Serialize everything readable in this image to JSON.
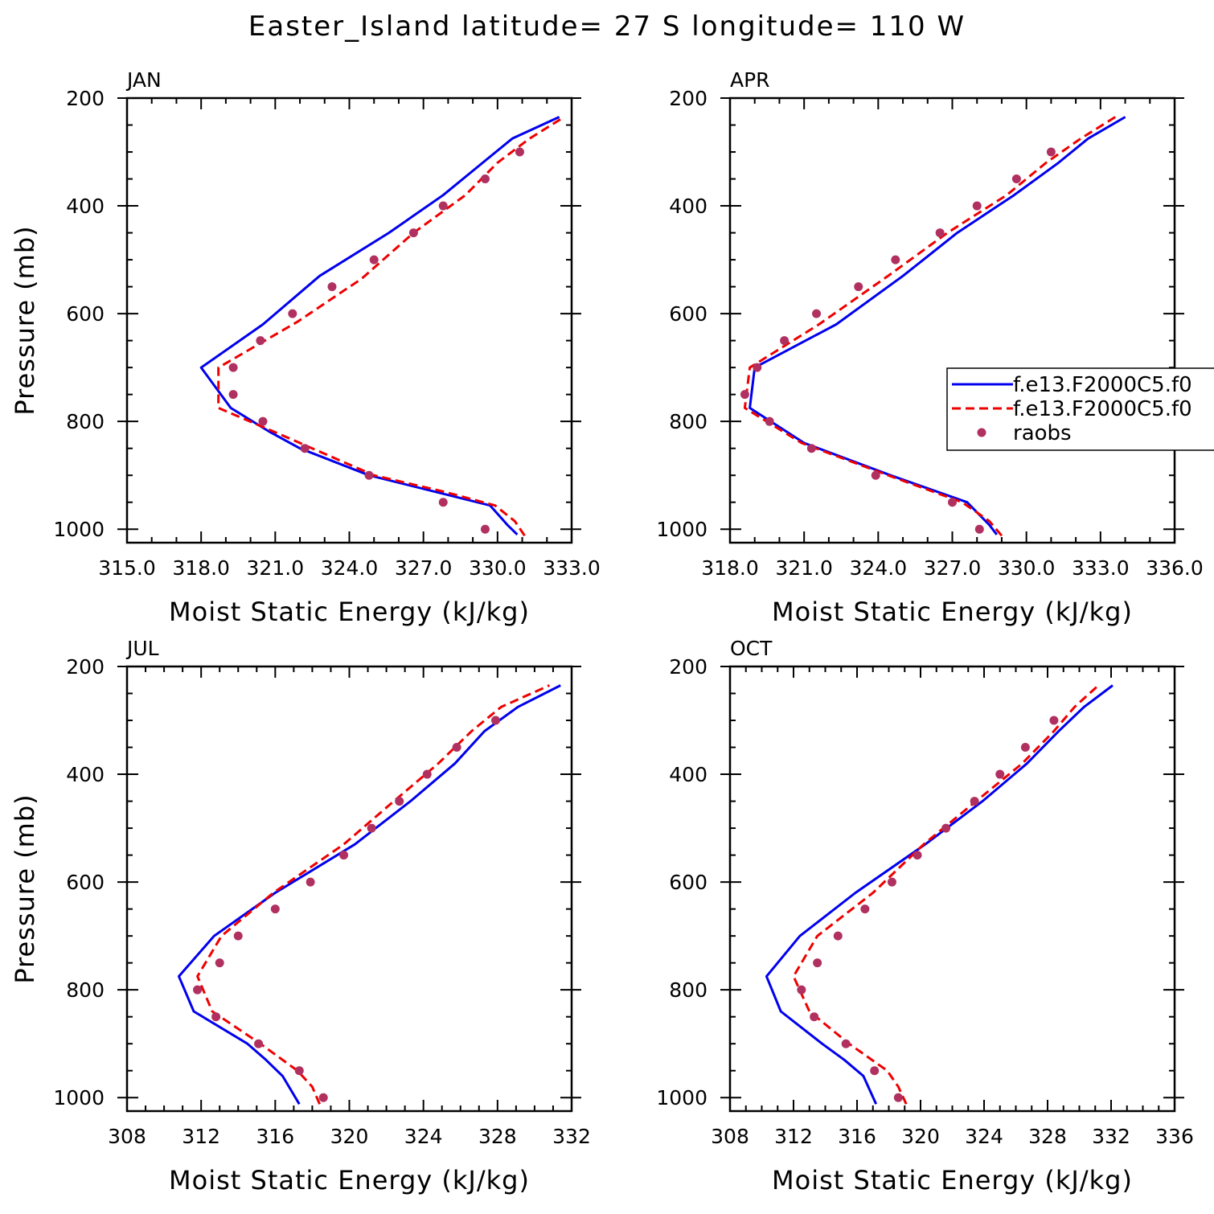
{
  "title": "Easter_Island  latitude= 27 S longitude= 110 W",
  "colors": {
    "model_a": "#0000ee",
    "model_b": "#ee0000",
    "raobs": "#b03060"
  },
  "legend": {
    "entries": [
      {
        "label": "f.e13.F2000C5.f0",
        "style": "solid",
        "color": "#0000ee"
      },
      {
        "label": "f.e13.F2000C5.f0",
        "style": "dashed",
        "color": "#ee0000"
      },
      {
        "label": "raobs",
        "style": "dot",
        "color": "#b03060"
      }
    ],
    "placement": "right of APR panel, partially clipped"
  },
  "chart_data": [
    {
      "type": "line",
      "panel_label": "JAN",
      "xlabel": "Moist Static Energy (kJ/kg)",
      "ylabel": "Pressure (mb)",
      "xlim": [
        315,
        333
      ],
      "ylim": [
        1025,
        200
      ],
      "inverted_y": true,
      "xticks": [
        315,
        318,
        321,
        324,
        327,
        330,
        333
      ],
      "xtick_labels": [
        "315.0",
        "318.0",
        "321.0",
        "324.0",
        "327.0",
        "330.0",
        "333.0"
      ],
      "yticks": [
        200,
        400,
        600,
        800,
        1000
      ],
      "ytick_labels": [
        "200",
        "400",
        "600",
        "800",
        "1000"
      ],
      "xminor": 1,
      "ymin_or": 50,
      "series": [
        {
          "key": "a",
          "style": "line",
          "p": [
            1010,
            992,
            956,
            900,
            850,
            820,
            775,
            700,
            620,
            530,
            450,
            380,
            320,
            275,
            235
          ],
          "x": [
            330.8,
            330.4,
            329.7,
            324.8,
            322.0,
            320.8,
            319.2,
            318.0,
            320.5,
            322.8,
            325.6,
            327.8,
            329.4,
            330.6,
            332.5
          ]
        },
        {
          "key": "b",
          "style": "dashed",
          "p": [
            1012,
            985,
            956,
            930,
            900,
            850,
            820,
            775,
            700,
            615,
            535,
            450,
            380,
            320,
            275,
            235
          ],
          "x": [
            331.1,
            330.7,
            329.9,
            327.8,
            325.0,
            322.5,
            321.0,
            318.7,
            318.7,
            321.9,
            324.5,
            326.6,
            328.7,
            330.0,
            331.3,
            332.7
          ]
        },
        {
          "key": "raobs",
          "style": "dot",
          "p": [
            300,
            350,
            400,
            450,
            500,
            550,
            600,
            650,
            700,
            750,
            800,
            850,
            900,
            950,
            1000
          ],
          "x": [
            330.9,
            329.5,
            327.8,
            326.6,
            325.0,
            323.3,
            321.7,
            320.4,
            319.3,
            319.3,
            320.5,
            322.2,
            324.8,
            327.8,
            329.5
          ]
        }
      ]
    },
    {
      "type": "line",
      "panel_label": "APR",
      "xlabel": "Moist Static Energy (kJ/kg)",
      "ylabel": "",
      "xlim": [
        318,
        336
      ],
      "ylim": [
        1025,
        200
      ],
      "inverted_y": true,
      "xticks": [
        318,
        321,
        324,
        327,
        330,
        333,
        336
      ],
      "xtick_labels": [
        "318.0",
        "321.0",
        "324.0",
        "327.0",
        "330.0",
        "333.0",
        "336.0"
      ],
      "yticks": [
        200,
        400,
        600,
        800,
        1000
      ],
      "ytick_labels": [
        "200",
        "400",
        "600",
        "800",
        "1000"
      ],
      "xminor": 1,
      "ymin_or": 50,
      "series": [
        {
          "key": "a",
          "style": "line",
          "p": [
            1010,
            992,
            950,
            900,
            840,
            775,
            700,
            620,
            530,
            450,
            380,
            320,
            275,
            235
          ],
          "x": [
            328.8,
            328.5,
            327.6,
            324.5,
            321.0,
            318.8,
            319.0,
            322.3,
            325.0,
            327.2,
            329.5,
            331.3,
            332.5,
            334.0
          ]
        },
        {
          "key": "b",
          "style": "dashed",
          "p": [
            1012,
            985,
            950,
            900,
            840,
            775,
            700,
            620,
            530,
            450,
            380,
            320,
            275,
            235
          ],
          "x": [
            329.0,
            328.5,
            327.4,
            324.4,
            320.9,
            318.6,
            318.8,
            321.6,
            324.4,
            326.8,
            329.2,
            330.8,
            332.2,
            333.6
          ]
        },
        {
          "key": "raobs",
          "style": "dot",
          "p": [
            300,
            350,
            400,
            450,
            500,
            550,
            600,
            650,
            700,
            750,
            800,
            850,
            900,
            950,
            1000
          ],
          "x": [
            331.0,
            329.6,
            328.0,
            326.5,
            324.7,
            323.2,
            321.5,
            320.2,
            319.1,
            318.6,
            319.6,
            321.3,
            323.9,
            327.0,
            328.1
          ]
        }
      ]
    },
    {
      "type": "line",
      "panel_label": "JUL",
      "xlabel": "Moist Static Energy (kJ/kg)",
      "ylabel": "Pressure (mb)",
      "xlim": [
        308,
        332
      ],
      "ylim": [
        1025,
        200
      ],
      "inverted_y": true,
      "xticks": [
        308,
        312,
        316,
        320,
        324,
        328,
        332
      ],
      "xtick_labels": [
        "308",
        "312",
        "316",
        "320",
        "324",
        "328",
        "332"
      ],
      "yticks": [
        200,
        400,
        600,
        800,
        1000
      ],
      "ytick_labels": [
        "200",
        "400",
        "600",
        "800",
        "1000"
      ],
      "xminor": 1,
      "ymin_or": 50,
      "series": [
        {
          "key": "a",
          "style": "line",
          "p": [
            1012,
            960,
            930,
            900,
            840,
            775,
            700,
            620,
            530,
            450,
            380,
            320,
            275,
            235
          ],
          "x": [
            317.3,
            316.4,
            315.5,
            314.5,
            311.6,
            310.8,
            312.7,
            316.0,
            320.3,
            323.3,
            325.7,
            327.3,
            329.1,
            331.4
          ]
        },
        {
          "key": "b",
          "style": "dashed",
          "p": [
            1012,
            980,
            950,
            925,
            900,
            840,
            775,
            700,
            620,
            530,
            450,
            380,
            320,
            275,
            235
          ],
          "x": [
            318.4,
            318.0,
            317.2,
            316.2,
            315.2,
            312.6,
            311.8,
            313.1,
            315.9,
            319.7,
            322.4,
            324.8,
            326.6,
            328.2,
            330.8
          ]
        },
        {
          "key": "raobs",
          "style": "dot",
          "p": [
            300,
            350,
            400,
            450,
            500,
            550,
            600,
            650,
            700,
            750,
            800,
            850,
            900,
            950,
            1000
          ],
          "x": [
            327.9,
            325.8,
            324.2,
            322.7,
            321.2,
            319.7,
            317.9,
            316.0,
            314.0,
            313.0,
            311.8,
            312.8,
            315.1,
            317.3,
            318.6
          ]
        }
      ]
    },
    {
      "type": "line",
      "panel_label": "OCT",
      "xlabel": "Moist Static Energy (kJ/kg)",
      "ylabel": "",
      "xlim": [
        308,
        336
      ],
      "ylim": [
        1025,
        200
      ],
      "inverted_y": true,
      "xticks": [
        308,
        312,
        316,
        320,
        324,
        328,
        332,
        336
      ],
      "xtick_labels": [
        "308",
        "312",
        "316",
        "320",
        "324",
        "328",
        "332",
        "336"
      ],
      "yticks": [
        200,
        400,
        600,
        800,
        1000
      ],
      "ytick_labels": [
        "200",
        "400",
        "600",
        "800",
        "1000"
      ],
      "xminor": 1,
      "ymin_or": 50,
      "series": [
        {
          "key": "a",
          "style": "line",
          "p": [
            1012,
            960,
            930,
            900,
            840,
            775,
            700,
            620,
            530,
            450,
            380,
            320,
            275,
            235
          ],
          "x": [
            317.2,
            316.4,
            315.2,
            313.8,
            311.2,
            310.3,
            312.4,
            315.9,
            320.3,
            323.9,
            326.7,
            328.7,
            330.3,
            332.1
          ]
        },
        {
          "key": "b",
          "style": "dashed",
          "p": [
            1012,
            980,
            950,
            925,
            900,
            840,
            775,
            700,
            620,
            530,
            450,
            380,
            320,
            275,
            235
          ],
          "x": [
            319.1,
            318.6,
            317.9,
            316.7,
            315.5,
            313.0,
            312.0,
            313.5,
            317.0,
            320.2,
            323.5,
            326.4,
            328.4,
            329.7,
            331.2
          ]
        },
        {
          "key": "raobs",
          "style": "dot",
          "p": [
            300,
            350,
            400,
            450,
            500,
            550,
            600,
            650,
            700,
            750,
            800,
            850,
            900,
            950,
            1000
          ],
          "x": [
            328.4,
            326.6,
            325.0,
            323.4,
            321.6,
            319.8,
            318.2,
            316.5,
            314.8,
            313.5,
            312.5,
            313.3,
            315.3,
            317.1,
            318.6
          ]
        }
      ]
    }
  ]
}
